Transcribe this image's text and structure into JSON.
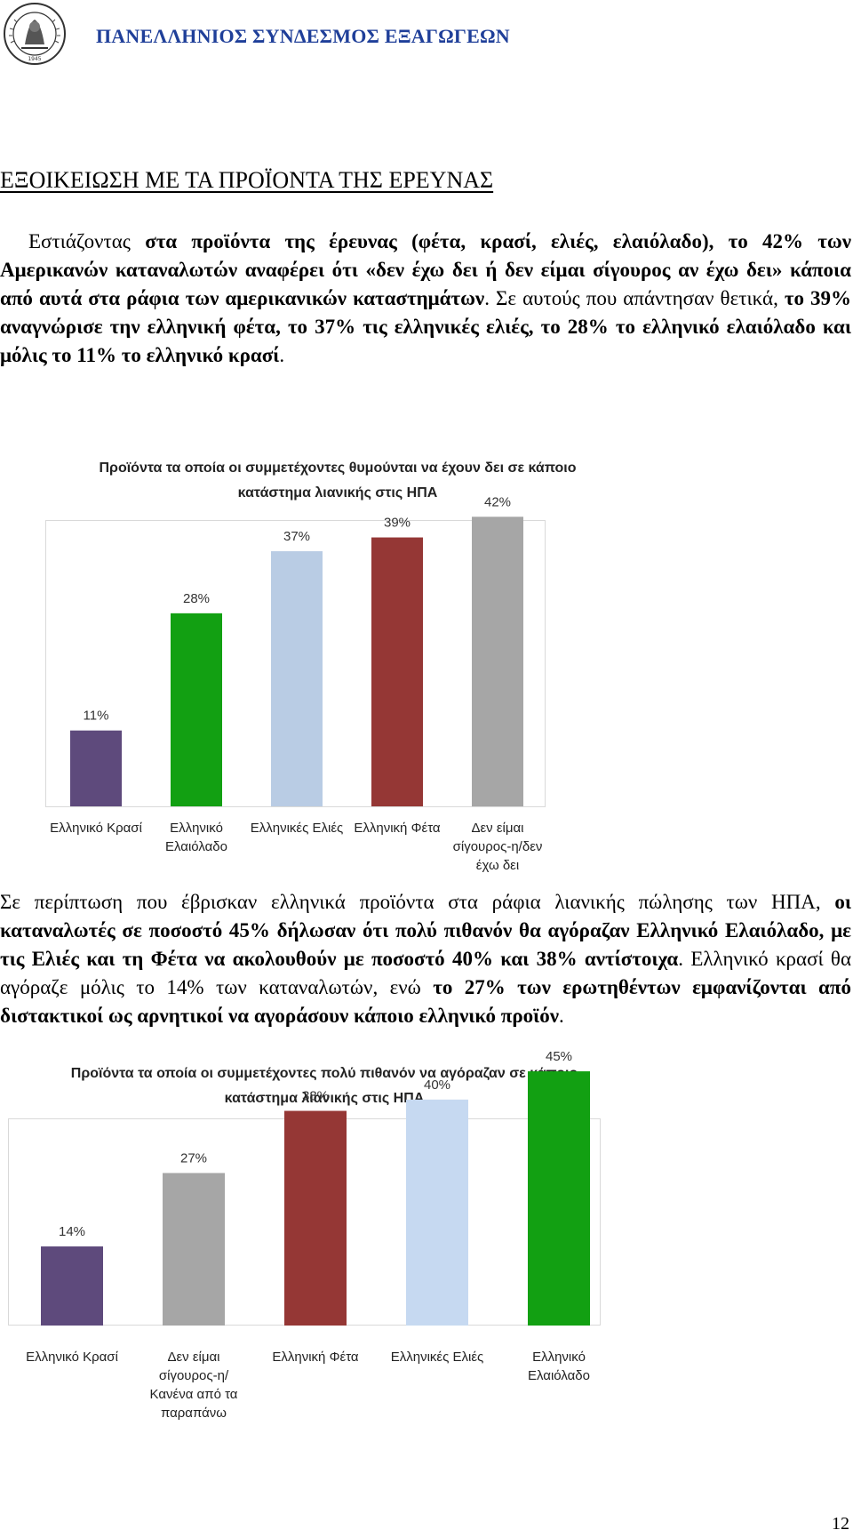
{
  "header": {
    "org_name": "ΠΑΝΕΛΛΗΝΙΟΣ ΣΥΝΔΕΣΜΟΣ ΕΞΑΓΩΓΕΩΝ",
    "logo_icon": "association-seal-icon",
    "logo_text": "ΠΑΝΕΛΛΗΝΙΟΣ ΣΥΝΔΕΣΜΟΣ ΕΞΑΓΩΓΕΩΝ 1945"
  },
  "section_title": "ΕΞΟΙΚΕΙΩΣΗ ΜΕ ΤΑ ΠΡΟΪΟΝΤΑ ΤΗΣ ΕΡΕΥΝΑΣ",
  "paragraph1": {
    "s1": "Εστιάζοντας ",
    "s2": "στα προϊόντα της έρευνας (φέτα, κρασί, ελιές, ελαιόλαδο), το 42% των Αμερικανών καταναλωτών αναφέρει ότι «δεν έχω δει ή δεν είμαι σίγουρος αν έχω δει» κάποια από αυτά στα ράφια των αμερικανικών καταστημάτων",
    "s3": ". Σε αυτούς που απάντησαν θετικά, ",
    "s4": "το 39% αναγνώρισε την ελληνική φέτα, το 37% τις ελληνικές ελιές, το 28% το ελληνικό ελαιόλαδο και μόλις το 11% το ελληνικό κρασί",
    "s5": "."
  },
  "paragraph2": {
    "s1": "Σε περίπτωση που έβρισκαν ελληνικά προϊόντα στα ράφια λιανικής πώλησης των ΗΠΑ, ",
    "s2": "οι καταναλωτές σε ποσοστό 45% δήλωσαν ότι πολύ πιθανόν θα αγόραζαν Ελληνικό Ελαιόλαδο, με τις Ελιές και τη Φέτα να ακολουθούν με ποσοστό 40% και 38% αντίστοιχα",
    "s3": ". Ελληνικό κρασί θα αγόραζε μόλις το 14% των καταναλωτών, ενώ ",
    "s4": "το 27% των ερωτηθέντων εμφανίζονται από διστακτικοί ως αρνητικοί να αγοράσουν κάποιο ελληνικό προϊόν",
    "s5": "."
  },
  "chart_data": [
    {
      "type": "bar",
      "title": "Προϊόντα τα οποία οι συμμετέχοντες θυμούνται να έχουν δει σε κάποιο κατάστημα λιανικής στις ΗΠΑ",
      "categories": [
        [
          "Ελληνικό Κρασί"
        ],
        [
          "Ελληνικό",
          "Ελαιόλαδο"
        ],
        [
          "Ελληνικές Ελιές"
        ],
        [
          "Ελληνική Φέτα"
        ],
        [
          "Δεν είμαι",
          "σίγουρος-η/δεν",
          "έχω δει"
        ]
      ],
      "values": [
        11,
        28,
        37,
        39,
        42
      ],
      "data_labels": [
        "11%",
        "28%",
        "37%",
        "39%",
        "42%"
      ],
      "colors": [
        "#5e4a7c",
        "#12a012",
        "#b9cce4",
        "#953735",
        "#a6a6a6"
      ],
      "ylim": [
        0,
        45
      ],
      "grid": false,
      "legend": "none"
    },
    {
      "type": "bar",
      "title": "Προϊόντα τα οποία οι συμμετέχοντες πολύ πιθανόν να αγόραζαν σε κάποιο κατάστημα λιανικής στις ΗΠΑ",
      "categories": [
        [
          "Ελληνικό Κρασί"
        ],
        [
          "Δεν είμαι",
          "σίγουρος-η/",
          "Κανένα από τα",
          "παραπάνω"
        ],
        [
          "Ελληνική Φέτα"
        ],
        [
          "Ελληνικές Ελιές"
        ],
        [
          "Ελληνικό",
          "Ελαιόλαδο"
        ]
      ],
      "values": [
        14,
        27,
        38,
        40,
        45
      ],
      "data_labels": [
        "14%",
        "27%",
        "38%",
        "40%",
        "45%"
      ],
      "colors": [
        "#5e4a7c",
        "#a6a6a6",
        "#953735",
        "#c6d9f1",
        "#12a012"
      ],
      "ylim": [
        0,
        48
      ],
      "grid": false,
      "legend": "none"
    }
  ],
  "page_number": "12"
}
